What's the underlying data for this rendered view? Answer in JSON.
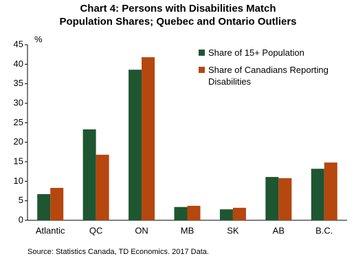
{
  "chart_data": {
    "type": "bar",
    "title": [
      "Chart 4: Persons with Disabilities  Match",
      "Population  Shares; Quebec and Ontario Outliers"
    ],
    "y_unit": "%",
    "categories": [
      "Atlantic",
      "QC",
      "ON",
      "MB",
      "SK",
      "AB",
      "B.C."
    ],
    "series": [
      {
        "name": "Share of 15+ Population",
        "color": "#1e5631",
        "values": [
          6.7,
          23.3,
          38.6,
          3.4,
          2.8,
          11.1,
          13.2
        ]
      },
      {
        "name": "Share of Canadians Reporting Disabilities",
        "color": "#b5470f",
        "values": [
          8.3,
          16.8,
          41.8,
          3.7,
          3.2,
          10.8,
          14.8
        ]
      }
    ],
    "ylim": [
      0,
      45
    ],
    "yticks": [
      0,
      5,
      10,
      15,
      20,
      25,
      30,
      35,
      40,
      45
    ],
    "source": "Source:  Statistics Canada, TD Economics.  2017 Data."
  }
}
